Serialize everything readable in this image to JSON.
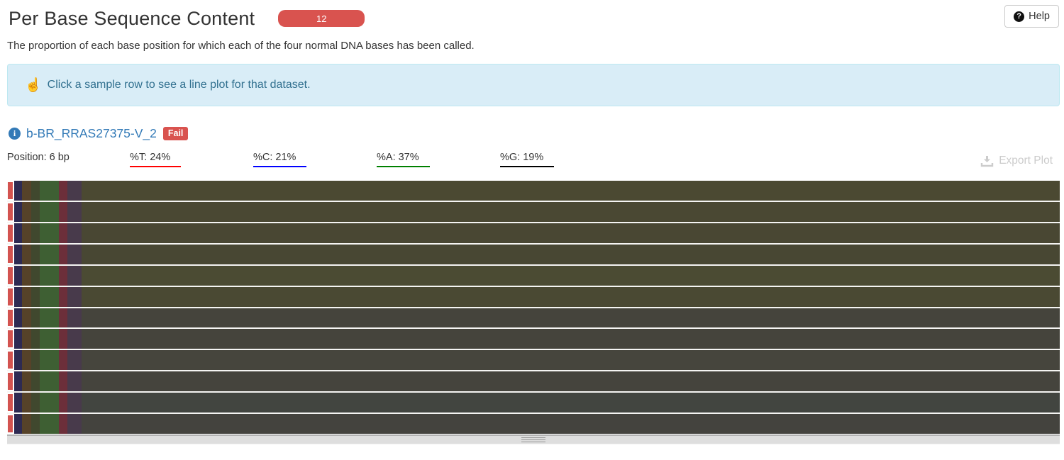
{
  "header": {
    "title": "Per Base Sequence Content",
    "sample_count": "12",
    "help_label": "Help",
    "help_icon_glyph": "?"
  },
  "description": "The proportion of each base position for which each of the four normal DNA bases has been called.",
  "info_box": {
    "icon_glyph": "☝",
    "text": "Click a sample row to see a line plot for that dataset."
  },
  "sample": {
    "info_icon_glyph": "i",
    "name": "b-BR_RRAS27375-V_2",
    "status": "Fail"
  },
  "status_bar": {
    "position": "Position: 6 bp",
    "labels": [
      {
        "text": "%T: 24%",
        "underline": "#ff0000"
      },
      {
        "text": "%C: 21%",
        "underline": "#0000ff"
      },
      {
        "text": "%A: 37%",
        "underline": "#008000"
      },
      {
        "text": "%G: 19%",
        "underline": "#000000"
      }
    ],
    "export_label": "Export Plot"
  },
  "chart_data": {
    "type": "heatmap",
    "title": "Per Base Sequence Content",
    "description": "One row per sample; each base position colored by proportion of T/C/A/G calls. Hover readout shown for highlighted sample.",
    "row_count": 12,
    "hover_readout": {
      "position_bp": 6,
      "pct_T": 24,
      "pct_C": 21,
      "pct_A": 37,
      "pct_G": 19
    },
    "sample_shown": "b-BR_RRAS27375-V_2",
    "sample_status": "Fail"
  },
  "heatmap": {
    "row_marker_color": "#d35350",
    "bands": [
      {
        "width": 11,
        "color": "#2e2a52"
      },
      {
        "width": 13,
        "color": "#564229"
      },
      {
        "width": 12,
        "color": "#40482e"
      },
      {
        "width": 27,
        "color": "#3e5f33"
      },
      {
        "width": 12,
        "color": "#6c2f3a"
      },
      {
        "width": 20,
        "color": "#483a4b"
      }
    ],
    "row_tail_colors": [
      "#4b4932",
      "#4a4833",
      "#494733",
      "#484733",
      "#4b4b33",
      "#4a4933",
      "#45443c",
      "#45443c",
      "#46453d",
      "#45443d",
      "#424540",
      "#44433e"
    ]
  },
  "colors": {
    "badge_bg": "#d9534f",
    "fail_bg": "#d9534f",
    "link": "#337ab7",
    "info_bg": "#d9edf7",
    "info_border": "#bce8f1",
    "info_text": "#31708f",
    "export_disabled": "#cccccc",
    "handle_bar_bg": "#dedede"
  }
}
